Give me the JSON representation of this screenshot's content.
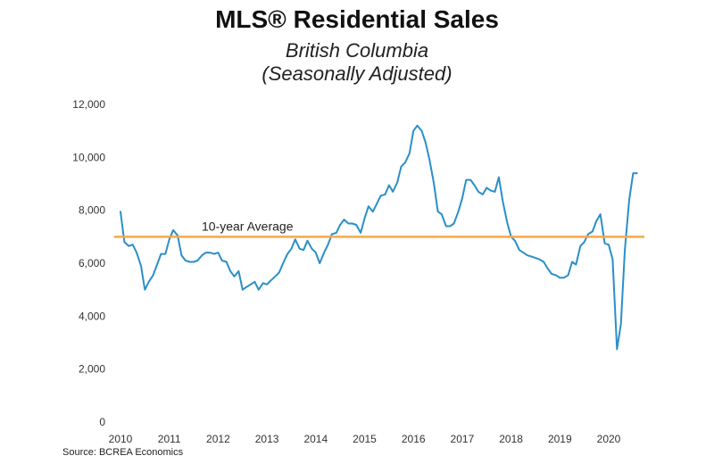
{
  "chart_data": {
    "type": "line",
    "title": "MLS® Residential Sales",
    "subtitle": [
      "British Columbia",
      "(Seasonally Adjusted)"
    ],
    "xlabel": "",
    "ylabel": "",
    "ylim": [
      0,
      12000
    ],
    "xlim": [
      2010.0,
      2020.75
    ],
    "y_ticks": [
      0,
      2000,
      4000,
      6000,
      8000,
      10000,
      12000
    ],
    "y_tick_labels": [
      "0",
      "2,000",
      "4,000",
      "6,000",
      "8,000",
      "10,000",
      "12,000"
    ],
    "x_ticks": [
      2010,
      2011,
      2012,
      2013,
      2014,
      2015,
      2016,
      2017,
      2018,
      2019,
      2020
    ],
    "x_tick_labels": [
      "2010",
      "2011",
      "2012",
      "2013",
      "2014",
      "2015",
      "2016",
      "2017",
      "2018",
      "2019",
      "2020"
    ],
    "grid": false,
    "legend": "none",
    "series": [
      {
        "color": "#2a8fc8",
        "x": [
          2010.0,
          2010.08,
          2010.17,
          2010.25,
          2010.33,
          2010.42,
          2010.5,
          2010.58,
          2010.67,
          2010.75,
          2010.83,
          2010.92,
          2011.0,
          2011.08,
          2011.17,
          2011.25,
          2011.33,
          2011.42,
          2011.5,
          2011.58,
          2011.67,
          2011.75,
          2011.83,
          2011.92,
          2012.0,
          2012.08,
          2012.17,
          2012.25,
          2012.33,
          2012.42,
          2012.5,
          2012.58,
          2012.67,
          2012.75,
          2012.83,
          2012.92,
          2013.0,
          2013.08,
          2013.17,
          2013.25,
          2013.33,
          2013.42,
          2013.5,
          2013.58,
          2013.67,
          2013.75,
          2013.83,
          2013.92,
          2014.0,
          2014.08,
          2014.17,
          2014.25,
          2014.33,
          2014.42,
          2014.5,
          2014.58,
          2014.67,
          2014.75,
          2014.83,
          2014.92,
          2015.0,
          2015.08,
          2015.17,
          2015.25,
          2015.33,
          2015.42,
          2015.5,
          2015.58,
          2015.67,
          2015.75,
          2015.83,
          2015.92,
          2016.0,
          2016.08,
          2016.17,
          2016.25,
          2016.33,
          2016.42,
          2016.5,
          2016.58,
          2016.67,
          2016.75,
          2016.83,
          2016.92,
          2017.0,
          2017.08,
          2017.17,
          2017.25,
          2017.33,
          2017.42,
          2017.5,
          2017.58,
          2017.67,
          2017.75,
          2017.83,
          2017.92,
          2018.0,
          2018.08,
          2018.17,
          2018.25,
          2018.33,
          2018.42,
          2018.5,
          2018.58,
          2018.67,
          2018.75,
          2018.83,
          2018.92,
          2019.0,
          2019.08,
          2019.17,
          2019.25,
          2019.33,
          2019.42,
          2019.5,
          2019.58,
          2019.67,
          2019.75,
          2019.83,
          2019.92,
          2020.0,
          2020.08,
          2020.17,
          2020.25,
          2020.33,
          2020.42,
          2020.5,
          2020.58
        ],
        "values": [
          7950,
          6800,
          6650,
          6700,
          6400,
          5900,
          5000,
          5300,
          5550,
          5950,
          6350,
          6350,
          6900,
          7250,
          7050,
          6300,
          6100,
          6050,
          6050,
          6100,
          6300,
          6400,
          6400,
          6350,
          6400,
          6100,
          6050,
          5700,
          5500,
          5700,
          5000,
          5100,
          5200,
          5300,
          5000,
          5250,
          5200,
          5350,
          5500,
          5650,
          6000,
          6350,
          6550,
          6900,
          6550,
          6500,
          6850,
          6550,
          6400,
          6000,
          6400,
          6700,
          7100,
          7150,
          7450,
          7650,
          7500,
          7500,
          7450,
          7150,
          7700,
          8150,
          7950,
          8250,
          8550,
          8600,
          8950,
          8700,
          9050,
          9650,
          9800,
          10150,
          11000,
          11200,
          11000,
          10550,
          9900,
          9000,
          7950,
          7850,
          7400,
          7400,
          7500,
          7950,
          8450,
          9150,
          9150,
          8950,
          8700,
          8600,
          8850,
          8750,
          8700,
          9250,
          8350,
          7550,
          7000,
          6850,
          6500,
          6400,
          6300,
          6250,
          6200,
          6150,
          6050,
          5800,
          5600,
          5550,
          5450,
          5450,
          5550,
          6050,
          5950,
          6650,
          6800,
          7100,
          7200,
          7600,
          7850,
          6750,
          6700,
          6150,
          2750,
          3700,
          6500,
          8400,
          9400,
          9400
        ]
      }
    ],
    "reference_lines": [
      {
        "label": "10-year Average",
        "y": 7000,
        "color": "#f5a84b"
      }
    ]
  },
  "source_text": "Source: BCREA Economics"
}
